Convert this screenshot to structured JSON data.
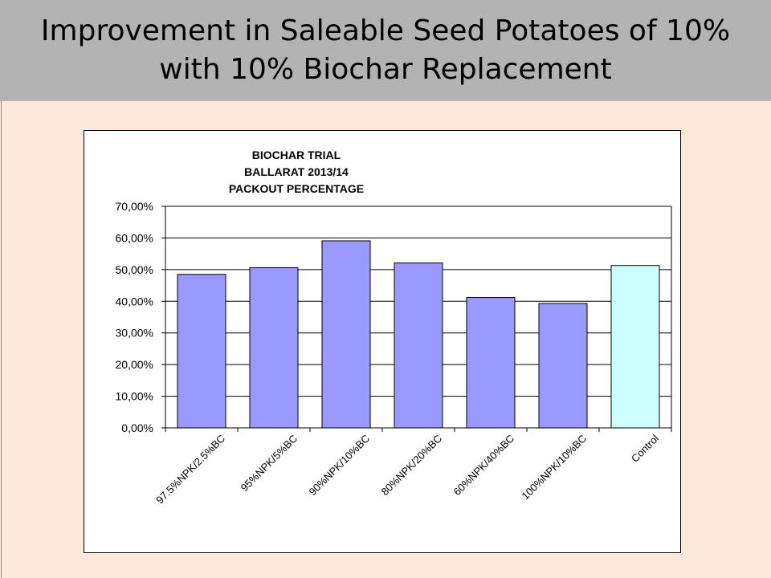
{
  "slide": {
    "title_line1": "Improvement in Saleable Seed Potatoes of  10%",
    "title_line2": "with 10% Biochar Replacement"
  },
  "chart_data": {
    "type": "bar",
    "title_lines": [
      "BIOCHAR  TRIAL",
      "BALLARAT  2013/14",
      "PACKOUT  PERCENTAGE"
    ],
    "categories": [
      "97.5%NPK/2.5%BC",
      "95%NPK/5%BC",
      "90%NPK/10%BC",
      "80%NPK/20%BC",
      "60%NPK/40%BC",
      "100%NPK/10%BC",
      "Control"
    ],
    "values": [
      48.5,
      50.6,
      59.1,
      52.1,
      41.2,
      39.3,
      51.3
    ],
    "bar_colors": [
      "#9999ff",
      "#9999ff",
      "#9999ff",
      "#9999ff",
      "#9999ff",
      "#9999ff",
      "#ccffff"
    ],
    "ylim": [
      0,
      70
    ],
    "yticks": [
      0,
      10,
      20,
      30,
      40,
      50,
      60,
      70
    ],
    "ytick_labels": [
      "0,00%",
      "10,00%",
      "20,00%",
      "30,00%",
      "40,00%",
      "50,00%",
      "60,00%",
      "70,00%"
    ],
    "grid": true,
    "xlabel": "",
    "ylabel": ""
  }
}
